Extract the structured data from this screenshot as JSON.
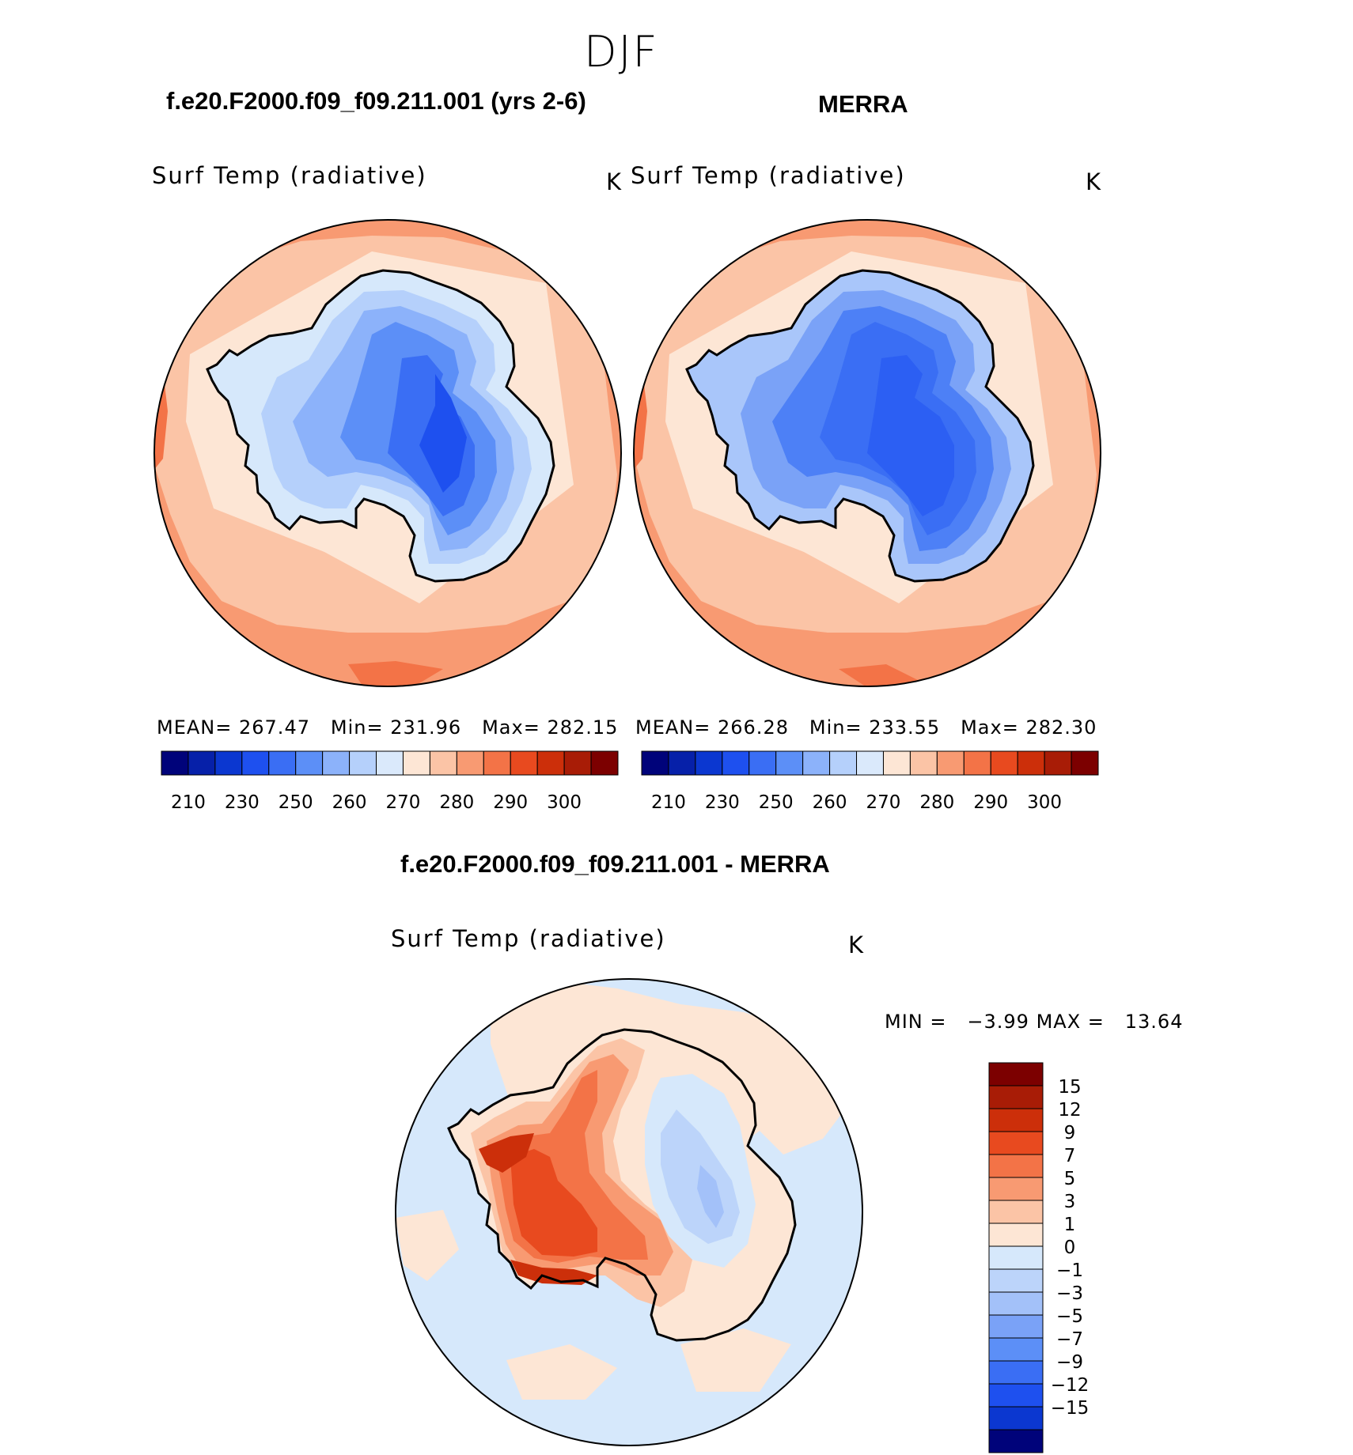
{
  "season": "DJF",
  "panels": [
    {
      "title": "f.e20.F2000.f09_f09.211.001 (yrs 2-6)",
      "variable": "Surf Temp (radiative)",
      "units": "K",
      "stats": {
        "mean_label": "MEAN=",
        "mean": "267.47",
        "min_label": "Min=",
        "min": "231.96",
        "max_label": "Max=",
        "max": "282.15"
      }
    },
    {
      "title": "MERRA",
      "variable": "Surf Temp (radiative)",
      "units": "K",
      "stats": {
        "mean_label": "MEAN=",
        "mean": "266.28",
        "min_label": "Min=",
        "min": "233.55",
        "max_label": "Max=",
        "max": "282.30"
      }
    }
  ],
  "difference": {
    "title": "f.e20.F2000.f09_f09.211.001 - MERRA",
    "variable": "Surf Temp (radiative)",
    "units": "K",
    "stats": {
      "min_label": "MIN =",
      "min": "−3.99",
      "max_label": "MAX =",
      "max": "13.64"
    }
  },
  "chart_data": [
    {
      "type": "heatmap",
      "projection": "south-polar-stereographic",
      "title": "f.e20.F2000.f09_f09.211.001 (yrs 2-6)",
      "variable": "Surf Temp (radiative)",
      "units": "K",
      "mean": 267.47,
      "min": 231.96,
      "max": 282.15,
      "levels": [
        {
          "value": 260,
          "color": "#d6e8fb"
        },
        {
          "value": 255,
          "color": "#b5d0fb"
        },
        {
          "value": 250,
          "color": "#8cb2fa"
        },
        {
          "value": 245,
          "color": "#5c8ff7"
        },
        {
          "value": 240,
          "color": "#3a6ef4"
        },
        {
          "value": 235,
          "color": "#1e50ef"
        }
      ]
    },
    {
      "type": "heatmap",
      "projection": "south-polar-stereographic",
      "title": "MERRA",
      "variable": "Surf Temp (radiative)",
      "units": "K",
      "mean": 266.28,
      "min": 233.55,
      "max": 282.3,
      "levels": [
        {
          "value": 260,
          "color": "#d6e8fb"
        },
        {
          "value": 255,
          "color": "#a9c6fa"
        },
        {
          "value": 250,
          "color": "#7aa2f7"
        },
        {
          "value": 245,
          "color": "#4d80f6"
        },
        {
          "value": 240,
          "color": "#2c5ff3"
        }
      ]
    },
    {
      "type": "heatmap",
      "projection": "south-polar-stereographic",
      "title": "f.e20.F2000.f09_f09.211.001 - MERRA",
      "variable": "Surf Temp (radiative)",
      "units": "K",
      "min": -3.99,
      "max": 13.64,
      "levels": [
        {
          "value": 1,
          "color": "#fde6d5"
        },
        {
          "value": 3,
          "color": "#fbc4a6"
        },
        {
          "value": 5,
          "color": "#f89a72"
        },
        {
          "value": 7,
          "color": "#f37347"
        },
        {
          "value": 9,
          "color": "#e84a1f"
        },
        {
          "value": 12,
          "color": "#cc2f0a"
        },
        {
          "value": -1,
          "color": "#bcd4fa"
        },
        {
          "value": -3,
          "color": "#a3c1f9"
        }
      ]
    }
  ],
  "colorbar_abs": {
    "colors": [
      "#00037a",
      "#0620a9",
      "#0b37d0",
      "#1e50ef",
      "#3a6ef4",
      "#5c8ff7",
      "#8cb2fa",
      "#b5d0fb",
      "#dae9fb",
      "#fde6d5",
      "#fbc4a6",
      "#f89a72",
      "#f37347",
      "#e84a1f",
      "#cc2f0a",
      "#a81c06",
      "#7c0000"
    ],
    "ticks": [
      "210",
      "230",
      "250",
      "260",
      "270",
      "280",
      "290",
      "300"
    ]
  },
  "colorbar_diff": {
    "colors_top_to_bottom": [
      "#7c0000",
      "#a81c06",
      "#cc2f0a",
      "#e84a1f",
      "#f37347",
      "#f89a72",
      "#fbc4a6",
      "#fde6d5",
      "#d6e8fb",
      "#bcd4fa",
      "#a3c1f9",
      "#7aa2f7",
      "#5c8ff7",
      "#3a6ef4",
      "#1e50ef",
      "#0b37d0",
      "#00037a"
    ],
    "ticks": [
      "15",
      "12",
      "9",
      "7",
      "5",
      "3",
      "1",
      "0",
      "−1",
      "−3",
      "−5",
      "−7",
      "−9",
      "−12",
      "−15"
    ]
  },
  "colors": {
    "ocean_mid": "#fbc4a6",
    "ocean_warm": "#f89a72",
    "ocean_hot": "#f37347",
    "coast_fringe": "#fde6d5",
    "diff_ocean_neutral": "#fde6d5",
    "diff_ocean_cool": "#d6e8fb"
  }
}
